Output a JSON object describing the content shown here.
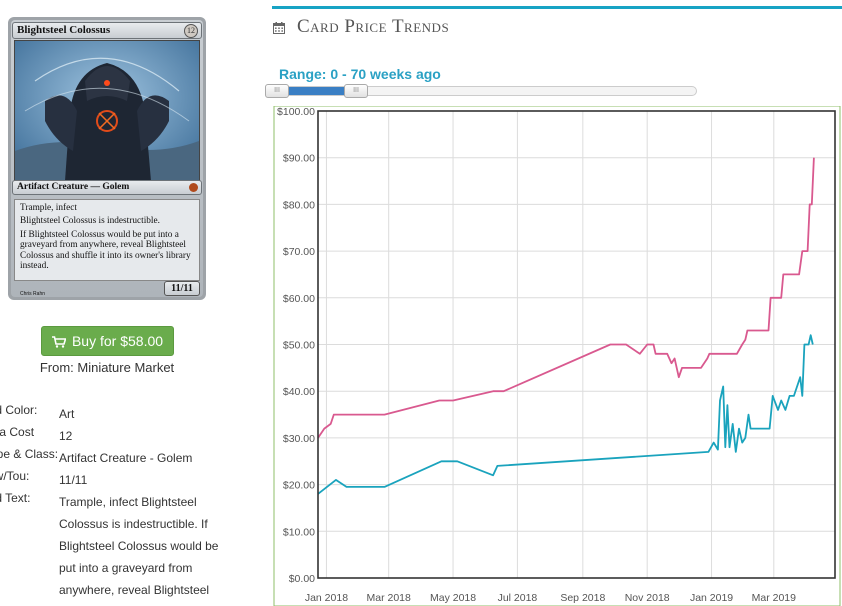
{
  "card": {
    "name": "Blightsteel Colossus",
    "mana": "12",
    "type_line": "Artifact Creature — Golem",
    "text_lines": [
      "Trample, infect",
      "Blightsteel Colossus is indestructible.",
      "If Blightsteel Colossus would be put into a graveyard from anywhere, reveal Blightsteel Colossus and shuffle it into its owner's library instead."
    ],
    "pt": "11/11",
    "artist": "Chris Rahn"
  },
  "buy": {
    "label": "Buy for $58.00",
    "icon": "shopping-cart-icon"
  },
  "from": "From: Miniature Market",
  "details": [
    {
      "label": "Card Color:",
      "value": "Art"
    },
    {
      "label": "Mana Cost",
      "value": "12"
    },
    {
      "label": "Type & Class:",
      "value": "Artifact Creature - Golem"
    },
    {
      "label": "Pow/Tou:",
      "value": "11/11"
    },
    {
      "label": "Card Text:",
      "value": "Trample, infect Blightsteel Colossus is indestructible. If Blightsteel Colossus would be put into a graveyard from anywhere, reveal Blightsteel"
    }
  ],
  "section": {
    "title": "Card Price Trends",
    "icon": "calendar-icon"
  },
  "range": {
    "label": "Range: 0 - 70 weeks ago",
    "min_weeks": 0,
    "max_weeks": 70
  },
  "colors": {
    "accent": "#17a3c4",
    "series_high": "#d9598f",
    "series_low": "#1aa3bd",
    "buy": "#6aac4c"
  },
  "chart_data": {
    "type": "line",
    "x_unit": "date",
    "xlim": [
      "2017-12-24",
      "2019-04-28"
    ],
    "ylim": [
      0,
      100
    ],
    "y_ticks": [
      "$0.00",
      "$10.00",
      "$20.00",
      "$30.00",
      "$40.00",
      "$50.00",
      "$60.00",
      "$70.00",
      "$80.00",
      "$90.00",
      "$100.00"
    ],
    "x_ticks": [
      {
        "label": "Jan 2018",
        "date": "2018-01-01"
      },
      {
        "label": "Mar 2018",
        "date": "2018-03-01"
      },
      {
        "label": "May 2018",
        "date": "2018-05-01"
      },
      {
        "label": "Jul 2018",
        "date": "2018-07-01"
      },
      {
        "label": "Sep 2018",
        "date": "2018-09-01"
      },
      {
        "label": "Nov 2018",
        "date": "2018-11-01"
      },
      {
        "label": "Jan 2019",
        "date": "2019-01-01"
      },
      {
        "label": "Mar 2019",
        "date": "2019-03-01"
      }
    ],
    "grid": true,
    "series": [
      {
        "values": [
          [
            "2017-12-24",
            30
          ],
          [
            "2017-12-30",
            32
          ],
          [
            "2018-01-05",
            33
          ],
          [
            "2018-01-08",
            35
          ],
          [
            "2018-01-20",
            35
          ],
          [
            "2018-02-25",
            35
          ],
          [
            "2018-04-18",
            38
          ],
          [
            "2018-05-01",
            38
          ],
          [
            "2018-06-08",
            40
          ],
          [
            "2018-06-18",
            40
          ],
          [
            "2018-09-27",
            50
          ],
          [
            "2018-10-12",
            50
          ],
          [
            "2018-10-25",
            48
          ],
          [
            "2018-11-01",
            50
          ],
          [
            "2018-11-07",
            50
          ],
          [
            "2018-11-09",
            48
          ],
          [
            "2018-11-20",
            48
          ],
          [
            "2018-11-24",
            46
          ],
          [
            "2018-11-27",
            47
          ],
          [
            "2018-12-01",
            43
          ],
          [
            "2018-12-04",
            45
          ],
          [
            "2018-12-22",
            45
          ],
          [
            "2018-12-28",
            47
          ],
          [
            "2018-12-30",
            48
          ],
          [
            "2019-01-25",
            48
          ],
          [
            "2019-01-30",
            50
          ],
          [
            "2019-02-02",
            51
          ],
          [
            "2019-02-04",
            53
          ],
          [
            "2019-02-24",
            53
          ],
          [
            "2019-02-26",
            60
          ],
          [
            "2019-03-08",
            60
          ],
          [
            "2019-03-10",
            65
          ],
          [
            "2019-03-25",
            65
          ],
          [
            "2019-03-28",
            70
          ],
          [
            "2019-04-02",
            70
          ],
          [
            "2019-04-04",
            80
          ],
          [
            "2019-04-06",
            80
          ],
          [
            "2019-04-08",
            90
          ]
        ]
      },
      {
        "values": [
          [
            "2017-12-24",
            18
          ],
          [
            "2018-01-10",
            21
          ],
          [
            "2018-01-20",
            19.5
          ],
          [
            "2018-02-25",
            19.5
          ],
          [
            "2018-04-20",
            25
          ],
          [
            "2018-05-05",
            25
          ],
          [
            "2018-06-08",
            22
          ],
          [
            "2018-06-12",
            24
          ],
          [
            "2018-12-29",
            27
          ],
          [
            "2019-01-03",
            29
          ],
          [
            "2019-01-07",
            27.5
          ],
          [
            "2019-01-09",
            38
          ],
          [
            "2019-01-12",
            41
          ],
          [
            "2019-01-14",
            28
          ],
          [
            "2019-01-16",
            37
          ],
          [
            "2019-01-18",
            28
          ],
          [
            "2019-01-21",
            33
          ],
          [
            "2019-01-24",
            27
          ],
          [
            "2019-01-27",
            32
          ],
          [
            "2019-01-30",
            29
          ],
          [
            "2019-02-02",
            30
          ],
          [
            "2019-02-05",
            35
          ],
          [
            "2019-02-07",
            32
          ],
          [
            "2019-02-25",
            32
          ],
          [
            "2019-02-28",
            39
          ],
          [
            "2019-03-05",
            36
          ],
          [
            "2019-03-08",
            38
          ],
          [
            "2019-03-12",
            36
          ],
          [
            "2019-03-16",
            39
          ],
          [
            "2019-03-20",
            39
          ],
          [
            "2019-03-26",
            43
          ],
          [
            "2019-03-28",
            39
          ],
          [
            "2019-03-30",
            50
          ],
          [
            "2019-04-03",
            50
          ],
          [
            "2019-04-05",
            52
          ],
          [
            "2019-04-07",
            50
          ]
        ]
      }
    ]
  }
}
